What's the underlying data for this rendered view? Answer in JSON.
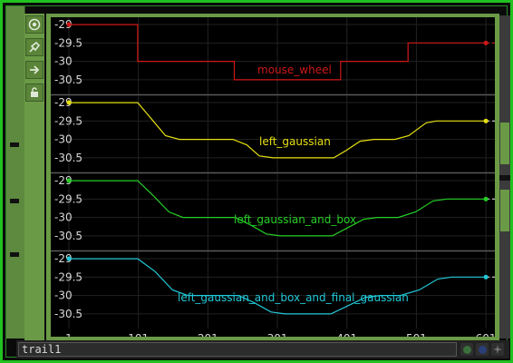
{
  "node": {
    "name": "trail1"
  },
  "toolbar": {
    "icons": [
      "target-icon",
      "pin-icon",
      "arrow-right-icon",
      "lock-icon"
    ]
  },
  "colors": {
    "accent": "#1fc21f",
    "panel": "#6a9a46"
  },
  "chart_data": {
    "type": "line",
    "x_ticks": [
      "1",
      "101",
      "201",
      "301",
      "401",
      "501",
      "601"
    ],
    "xlim": [
      1,
      640
    ],
    "y_ticks": [
      "-29",
      "-29.5",
      "-30",
      "-30.5"
    ],
    "ylim": [
      -30.75,
      -28.9
    ],
    "series": [
      {
        "name": "mouse_wheel",
        "color": "#d01818",
        "step": true,
        "points": [
          [
            1,
            -29
          ],
          [
            100,
            -29
          ],
          [
            100,
            -30
          ],
          [
            239,
            -30
          ],
          [
            239,
            -30.5
          ],
          [
            392,
            -30.5
          ],
          [
            392,
            -30
          ],
          [
            489,
            -30
          ],
          [
            489,
            -29.5
          ],
          [
            640,
            -29.5
          ]
        ]
      },
      {
        "name": "left_gaussian",
        "color": "#e6df10",
        "points": [
          [
            1,
            -29
          ],
          [
            100,
            -29
          ],
          [
            120,
            -29.45
          ],
          [
            140,
            -29.9
          ],
          [
            160,
            -30
          ],
          [
            237,
            -30
          ],
          [
            257,
            -30.15
          ],
          [
            275,
            -30.45
          ],
          [
            295,
            -30.5
          ],
          [
            382,
            -30.5
          ],
          [
            400,
            -30.3
          ],
          [
            420,
            -30.05
          ],
          [
            440,
            -30
          ],
          [
            470,
            -30
          ],
          [
            490,
            -29.9
          ],
          [
            515,
            -29.55
          ],
          [
            530,
            -29.5
          ],
          [
            640,
            -29.5
          ]
        ]
      },
      {
        "name": "left_gaussian_and_box",
        "color": "#25d025",
        "points": [
          [
            1,
            -29
          ],
          [
            100,
            -29
          ],
          [
            122,
            -29.4
          ],
          [
            145,
            -29.85
          ],
          [
            165,
            -30
          ],
          [
            240,
            -30
          ],
          [
            262,
            -30.2
          ],
          [
            285,
            -30.45
          ],
          [
            305,
            -30.5
          ],
          [
            380,
            -30.5
          ],
          [
            400,
            -30.3
          ],
          [
            425,
            -30.05
          ],
          [
            445,
            -30
          ],
          [
            475,
            -30
          ],
          [
            500,
            -29.85
          ],
          [
            525,
            -29.55
          ],
          [
            545,
            -29.5
          ],
          [
            640,
            -29.5
          ]
        ]
      },
      {
        "name": "left_gaussian_and_box_and_final_gaussian",
        "color": "#22c8d8",
        "points": [
          [
            1,
            -29
          ],
          [
            100,
            -29
          ],
          [
            125,
            -29.35
          ],
          [
            150,
            -29.85
          ],
          [
            172,
            -30
          ],
          [
            245,
            -30
          ],
          [
            268,
            -30.2
          ],
          [
            292,
            -30.45
          ],
          [
            312,
            -30.5
          ],
          [
            378,
            -30.5
          ],
          [
            400,
            -30.3
          ],
          [
            428,
            -30.05
          ],
          [
            450,
            -30
          ],
          [
            478,
            -30
          ],
          [
            505,
            -29.85
          ],
          [
            532,
            -29.55
          ],
          [
            552,
            -29.5
          ],
          [
            640,
            -29.5
          ]
        ]
      }
    ]
  }
}
